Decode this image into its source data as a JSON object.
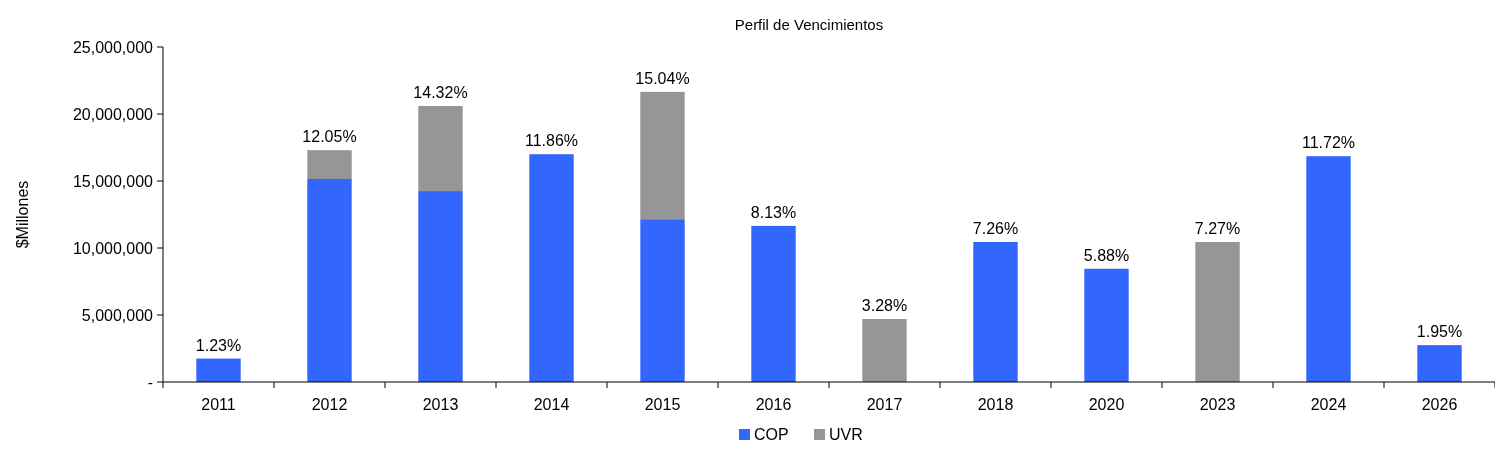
{
  "chart_data": {
    "type": "bar",
    "title": "Perfil de Vencimientos",
    "ylabel": "$Millones",
    "stacked": true,
    "legend": "bottom",
    "categories": [
      "2011",
      "2012",
      "2013",
      "2014",
      "2015",
      "2016",
      "2017",
      "2018",
      "2020",
      "2023",
      "2024",
      "2026"
    ],
    "series": [
      {
        "name": "COP",
        "color": "#3366ff",
        "values": [
          1750000,
          15150000,
          14250000,
          17000000,
          12150000,
          11650000,
          null,
          10450000,
          8450000,
          null,
          16850000,
          2750000
        ]
      },
      {
        "name": "UVR",
        "color": "#969696",
        "values": [
          null,
          2150000,
          6350000,
          null,
          9500000,
          null,
          4700000,
          null,
          null,
          10450000,
          null,
          null
        ]
      }
    ],
    "annotations": [
      {
        "text": "1.23%",
        "x": "2011",
        "y": 1750000
      },
      {
        "text": "12.05%",
        "x": "2012",
        "y": 17300000
      },
      {
        "text": "14.32%",
        "x": "2013",
        "y": 20600000
      },
      {
        "text": "11.86%",
        "x": "2014",
        "y": 17000000
      },
      {
        "text": "15.04%",
        "x": "2015",
        "y": 21650000
      },
      {
        "text": "8.13%",
        "x": "2016",
        "y": 11650000
      },
      {
        "text": "3.28%",
        "x": "2017",
        "y": 4700000
      },
      {
        "text": "7.26%",
        "x": "2018",
        "y": 10450000
      },
      {
        "text": "5.88%",
        "x": "2020",
        "y": 8450000
      },
      {
        "text": "7.27%",
        "x": "2023",
        "y": 10450000
      },
      {
        "text": "11.72%",
        "x": "2024",
        "y": 16850000
      },
      {
        "text": "1.95%",
        "x": "2026",
        "y": 2750000
      }
    ],
    "ylim": [
      0,
      25000000
    ],
    "yticks": [
      {
        "value": 0,
        "label": "-"
      },
      {
        "value": 5000000,
        "label": "5,000,000"
      },
      {
        "value": 10000000,
        "label": "10,000,000"
      },
      {
        "value": 15000000,
        "label": "15,000,000"
      },
      {
        "value": 20000000,
        "label": "20,000,000"
      },
      {
        "value": 25000000,
        "label": "25,000,000"
      }
    ]
  }
}
